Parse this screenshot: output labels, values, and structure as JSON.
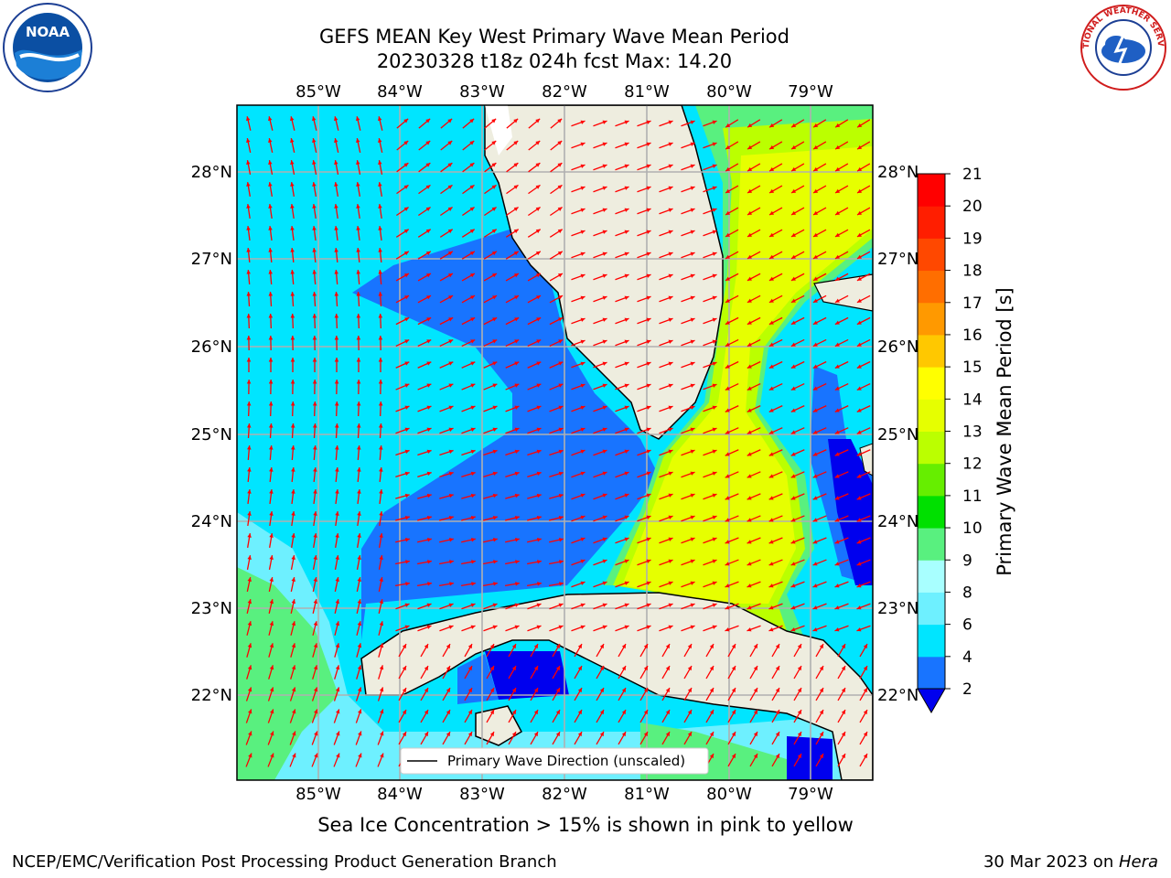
{
  "title_line1": "GEFS MEAN Key West Primary Wave Mean Period",
  "title_line2": "20230328 t18z 024h fcst   Max: 14.20",
  "map": {
    "lon_labels": [
      "85°W",
      "84°W",
      "83°W",
      "82°W",
      "81°W",
      "80°W",
      "79°W"
    ],
    "lat_labels": [
      "28°N",
      "27°N",
      "26°N",
      "25°N",
      "24°N",
      "23°N",
      "22°N"
    ],
    "legend_label": "Primary Wave Direction (unscaled)"
  },
  "colorbar": {
    "label": "Primary Wave Mean Period [s]",
    "ticks": [
      "2",
      "4",
      "6",
      "8",
      "9",
      "10",
      "11",
      "12",
      "13",
      "14",
      "15",
      "16",
      "17",
      "18",
      "19",
      "20",
      "21"
    ],
    "colors": [
      "#0000ee",
      "#1874ff",
      "#00e5ff",
      "#6ef0ff",
      "#a8ffff",
      "#59f07f",
      "#00e000",
      "#66ee00",
      "#bbff00",
      "#e6ff00",
      "#ffff00",
      "#ffc800",
      "#ff9900",
      "#ff6e00",
      "#ff4800",
      "#ff1e00",
      "#ff0000"
    ]
  },
  "sea_ice_note": "Sea Ice Concentration > 15% is shown in pink to yellow",
  "credit": "NCEP/EMC/Verification Post Processing Product Generation Branch",
  "date_text": "30 Mar 2023 on ",
  "host": "Hera",
  "logos": {
    "left": "NOAA",
    "right": "NATIONAL WEATHER SERVICE"
  }
}
